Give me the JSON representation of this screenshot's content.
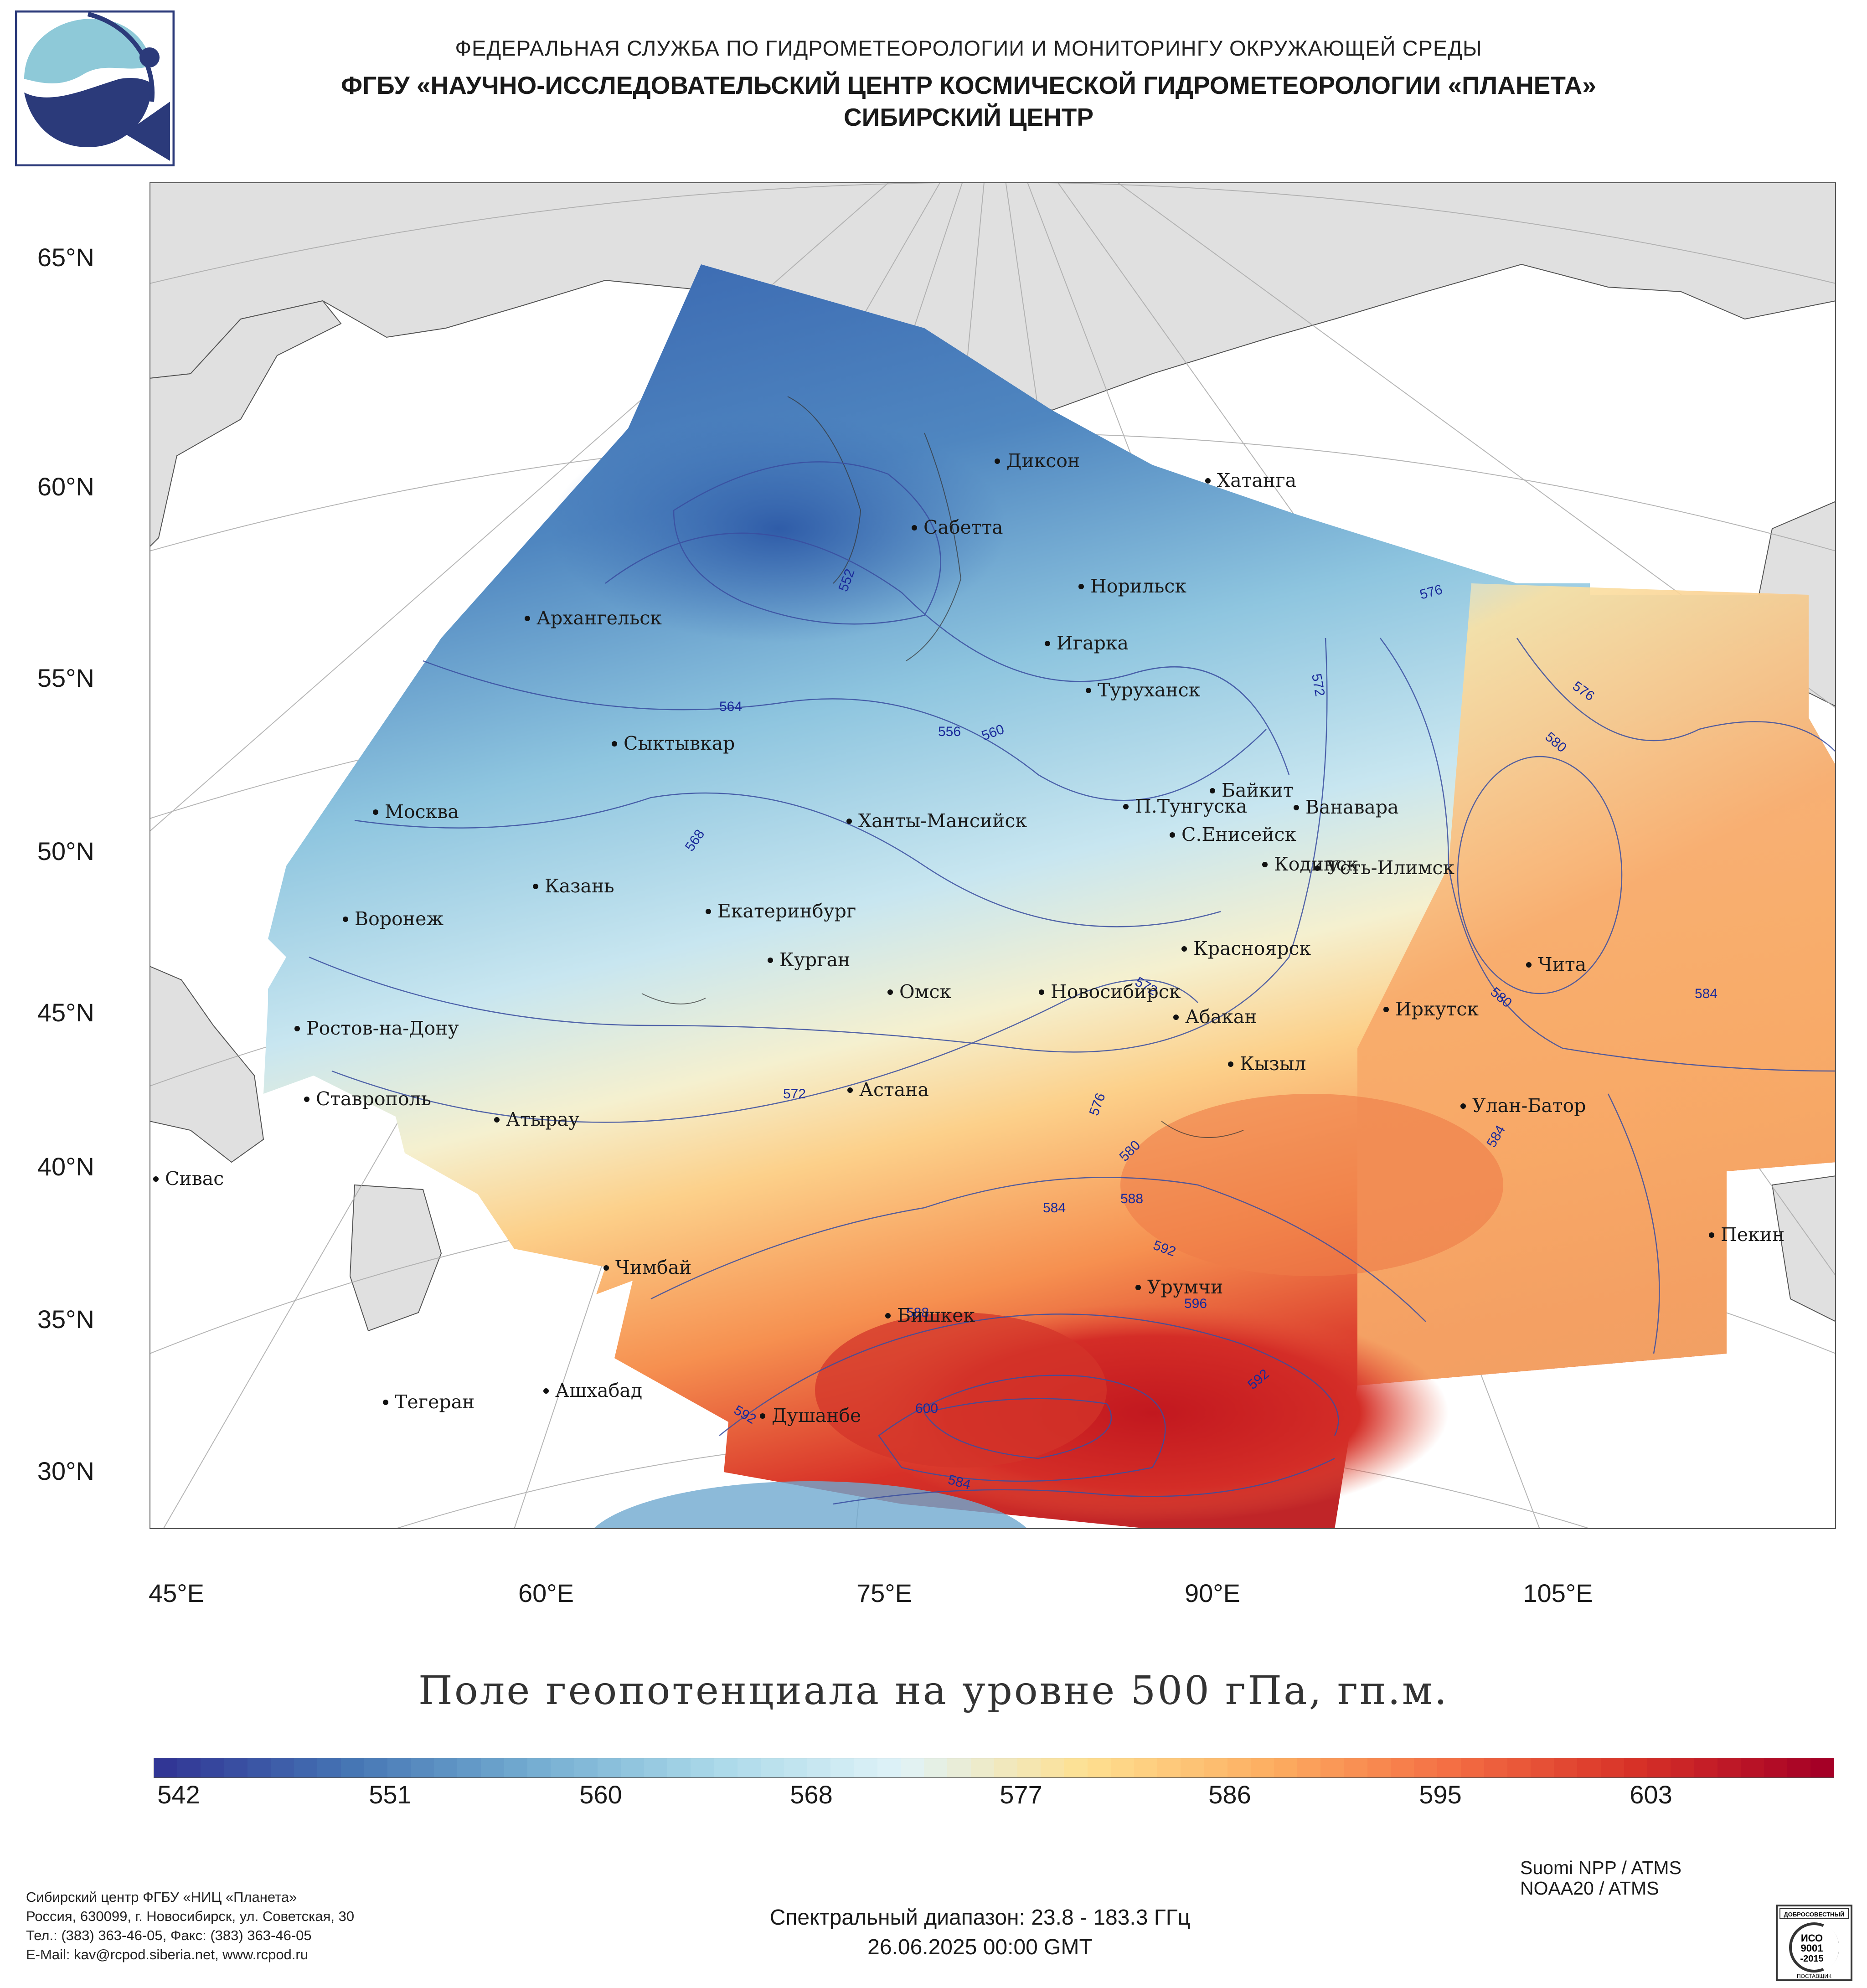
{
  "header": {
    "line1": "ФЕДЕРАЛЬНАЯ СЛУЖБА ПО ГИДРОМЕТЕОРОЛОГИИ И МОНИТОРИНГУ ОКРУЖАЮЩЕЙ СРЕДЫ",
    "line2": "ФГБУ «НАУЧНО-ИССЛЕДОВАТЕЛЬСКИЙ ЦЕНТР КОСМИЧЕСКОЙ ГИДРОМЕТЕОРОЛОГИИ «ПЛАНЕТА»",
    "line3": "СИБИРСКИЙ ЦЕНТР"
  },
  "map": {
    "lat_labels": [
      "65°N",
      "60°N",
      "55°N",
      "50°N",
      "45°N",
      "40°N",
      "35°N",
      "30°N"
    ],
    "lon_labels": [
      "45°E",
      "60°E",
      "75°E",
      "90°E",
      "105°E"
    ],
    "cities": [
      "Диксон",
      "Хатанга",
      "Сабетта",
      "Норильск",
      "Архангельск",
      "Игарка",
      "Туруханск",
      "Сыктывкар",
      "Байкит",
      "Москва",
      "Ханты-Мансийск",
      "П.Тунгуска",
      "Ванавара",
      "С.Енисейск",
      "Кодинск",
      "Усть-Илимск",
      "Казань",
      "Екатеринбург",
      "Воронеж",
      "Красноярск",
      "Курган",
      "Чита",
      "Омск",
      "Новосибирск",
      "Иркутск",
      "Ростов-на-Дону",
      "Абакан",
      "Кызыл",
      "Ставрополь",
      "Астана",
      "Улан-Батор",
      "Атырау",
      "Сивас",
      "Пекин",
      "Чимбай",
      "Урумчи",
      "Бишкек",
      "Ашхабад",
      "Тегеран",
      "Душанбе"
    ],
    "contour_labels": [
      "552",
      "556",
      "560",
      "564",
      "568",
      "572",
      "572",
      "572",
      "576",
      "576",
      "576",
      "580",
      "580",
      "580",
      "580",
      "584",
      "584",
      "584",
      "584",
      "588",
      "588",
      "592",
      "592",
      "592",
      "596",
      "600"
    ]
  },
  "title": "Поле геопотенциала на уровне 500 гПа, гп.м.",
  "colorbar": {
    "ticks": [
      "542",
      "551",
      "560",
      "568",
      "577",
      "586",
      "595",
      "603"
    ],
    "colors": [
      "#313695",
      "#4575b4",
      "#74add1",
      "#abd9e9",
      "#e0f3f8",
      "#fee090",
      "#fdae61",
      "#f46d43",
      "#d73027",
      "#a50026"
    ]
  },
  "footer": {
    "org": "Сибирский центр ФГБУ «НИЦ «Планета»",
    "address": "Россия, 630099, г. Новосибирск, ул. Советская, 30",
    "phone": "Тел.: (383) 363-46-05, Факс: (383) 363-46-05",
    "email": "E-Mail: kav@rcpod.siberia.net, www.rcpod.ru",
    "sat1": "Suomi NPP / ATMS",
    "sat2": "NOAA20 / ATMS",
    "spectral": "Спектральный диапазон: 23.8 - 183.3 ГГц",
    "datetime": "26.06.2025 00:00 GMT"
  },
  "iso_badge": {
    "top": "ДОБРОСОВЕСТНЫЙ",
    "line1": "ИСО",
    "line2": "9001",
    "line3": "-2015",
    "bottom": "ПОСТАВЩИК"
  }
}
